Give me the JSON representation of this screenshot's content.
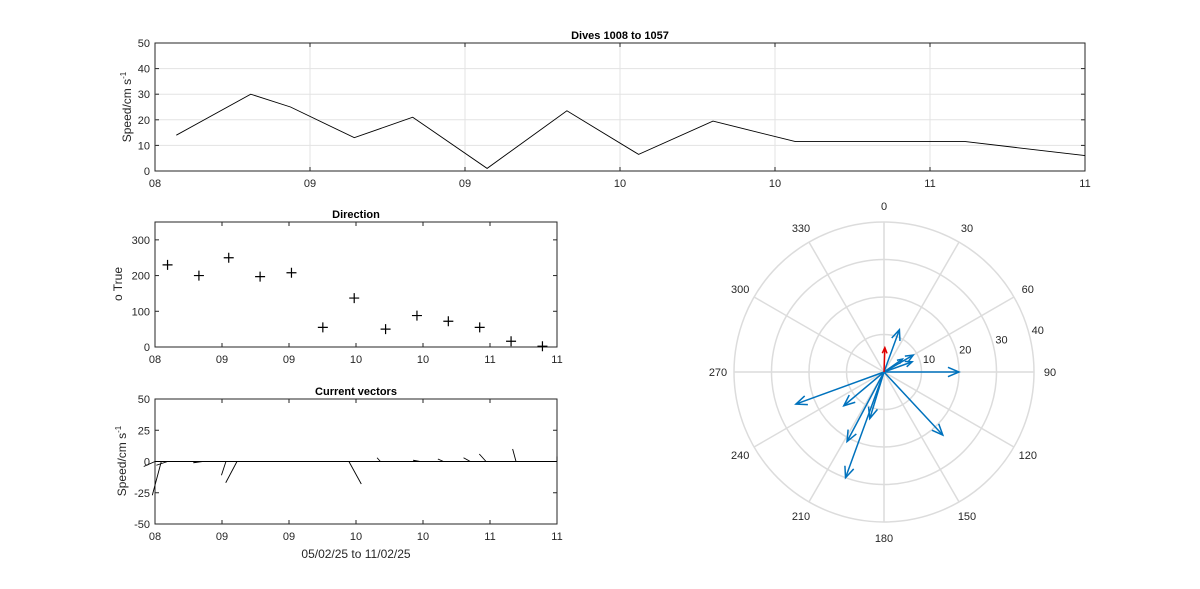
{
  "colors": {
    "line": "#000000",
    "grid": "#e3e3e3",
    "axis": "#262626",
    "arrow_blue": "#0072bd",
    "arrow_red": "#e00000",
    "polar_grid": "#dcdcdc"
  },
  "chart_data": [
    {
      "type": "line",
      "title": "Dives 1008 to 1057",
      "ylabel": "Speed/cm s",
      "ylabel_sup": "-1",
      "ylim": [
        0,
        50
      ],
      "yticks": [
        0,
        10,
        20,
        30,
        40,
        50
      ],
      "xtick_labels": [
        "08",
        "09",
        "09",
        "10",
        "10",
        "11",
        "11"
      ],
      "grid": true,
      "x": [
        0.08,
        0.36,
        0.51,
        0.75,
        0.97,
        1.25,
        1.55,
        1.82,
        2.1,
        2.41,
        2.65,
        3.05,
        3.5
      ],
      "values": [
        14,
        30,
        25,
        13,
        21,
        1,
        23.5,
        6.5,
        19.5,
        11.5,
        11.5,
        11.5,
        6
      ]
    },
    {
      "type": "scatter",
      "title": "Direction",
      "ylabel": "o True",
      "ylim": [
        0,
        350
      ],
      "yticks": [
        0,
        100,
        200,
        300
      ],
      "xtick_labels": [
        "08",
        "09",
        "09",
        "10",
        "10",
        "11",
        "11"
      ],
      "grid": false,
      "marker": "+",
      "x": [
        0.08,
        0.28,
        0.47,
        0.67,
        0.87,
        1.07,
        1.27,
        1.47,
        1.67,
        1.87,
        2.07,
        2.27,
        2.47
      ],
      "values": [
        230,
        200,
        250,
        197,
        208,
        55,
        137,
        50,
        88,
        72,
        55,
        16,
        2
      ]
    },
    {
      "type": "line",
      "title": "Current vectors",
      "ylabel": "Speed/cm s",
      "ylabel_sup": "-1",
      "xlabel": "05/02/25 to 11/02/25",
      "ylim": [
        -50,
        50
      ],
      "yticks": [
        -50,
        -25,
        0,
        25,
        50
      ],
      "xtick_labels": [
        "08",
        "09",
        "09",
        "10",
        "10",
        "11",
        "11"
      ],
      "grid": false,
      "sticks": [
        {
          "x": 0.0,
          "u": 10,
          "v": 4
        },
        {
          "x": 0.04,
          "u": 8,
          "v": 27
        },
        {
          "x": 0.08,
          "u": 10,
          "v": 3
        },
        {
          "x": 0.3,
          "u": 8,
          "v": 1
        },
        {
          "x": 0.45,
          "u": 4,
          "v": 11
        },
        {
          "x": 0.52,
          "u": 10,
          "v": 17
        },
        {
          "x": 0.75,
          "u": 4,
          "v": 0
        },
        {
          "x": 1.02,
          "u": 1,
          "v": 0
        },
        {
          "x": 1.23,
          "u": -11,
          "v": 18
        },
        {
          "x": 1.43,
          "u": -3,
          "v": -3
        },
        {
          "x": 1.68,
          "u": -6,
          "v": -1
        },
        {
          "x": 1.83,
          "u": -5,
          "v": -2
        },
        {
          "x": 2.0,
          "u": -6,
          "v": -3
        },
        {
          "x": 2.1,
          "u": -6,
          "v": -6
        },
        {
          "x": 2.29,
          "u": -3,
          "v": -10
        },
        {
          "x": 2.55,
          "u": 0,
          "v": -4
        }
      ]
    },
    {
      "type": "polar",
      "theta_labels": [
        "0",
        "30",
        "60",
        "90",
        "120",
        "150",
        "180",
        "210",
        "240",
        "270",
        "300",
        "330"
      ],
      "r_labels": [
        "10",
        "20",
        "30",
        "40"
      ],
      "rlim": [
        0,
        40
      ],
      "vectors": [
        {
          "dir": 20,
          "speed": 12
        },
        {
          "dir": 60,
          "speed": 9
        },
        {
          "dir": 70,
          "speed": 8
        },
        {
          "dir": 90,
          "speed": 20
        },
        {
          "dir": 137,
          "speed": 23
        },
        {
          "dir": 200,
          "speed": 30
        },
        {
          "dir": 208,
          "speed": 21
        },
        {
          "dir": 230,
          "speed": 14
        },
        {
          "dir": 250,
          "speed": 25
        },
        {
          "dir": 55,
          "speed": 6
        },
        {
          "dir": 197,
          "speed": 13
        }
      ],
      "red_vector": {
        "dir": 2,
        "speed": 6.5
      }
    }
  ]
}
